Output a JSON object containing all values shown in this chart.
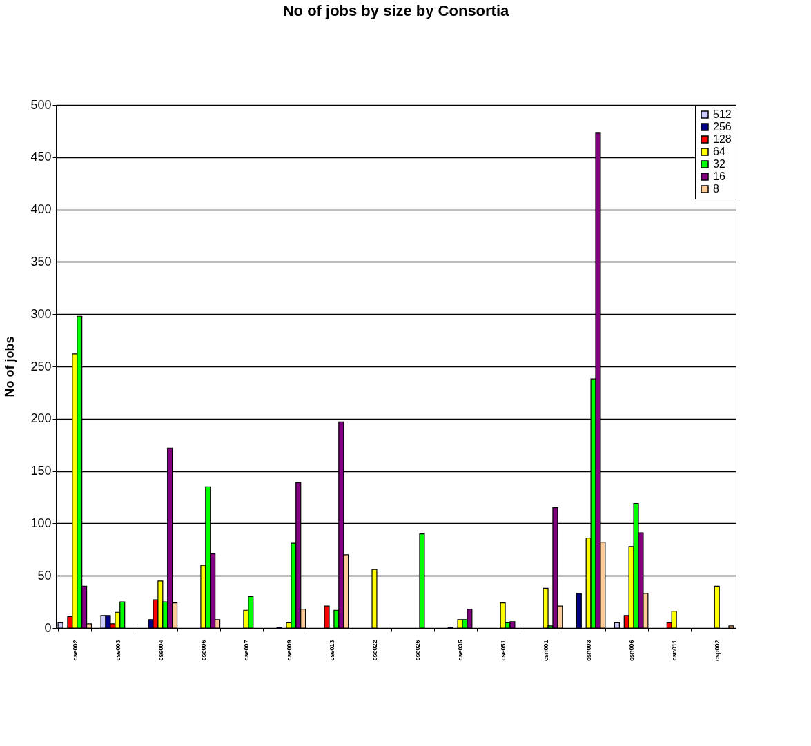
{
  "chart_data": {
    "type": "bar",
    "title": "No of jobs by size by Consortia",
    "ylabel": "No of jobs",
    "categories": [
      "cse002",
      "cse003",
      "cse004",
      "cse006",
      "cse007",
      "cse009",
      "cse013",
      "cse022",
      "cse026",
      "cse035",
      "cse051",
      "csn001",
      "csn003",
      "csn006",
      "csn011",
      "csp002"
    ],
    "series": [
      {
        "name": "512",
        "color": "#ccccff",
        "values": [
          5,
          12,
          null,
          null,
          null,
          null,
          null,
          null,
          null,
          null,
          null,
          null,
          null,
          5,
          null,
          null
        ]
      },
      {
        "name": "256",
        "color": "#000080",
        "values": [
          null,
          12,
          8,
          null,
          null,
          1,
          null,
          null,
          null,
          1,
          null,
          null,
          33,
          null,
          null,
          null
        ]
      },
      {
        "name": "128",
        "color": "#ff0000",
        "values": [
          11,
          4,
          27,
          null,
          null,
          null,
          21,
          null,
          null,
          null,
          null,
          null,
          null,
          12,
          5,
          null
        ]
      },
      {
        "name": "64",
        "color": "#ffff00",
        "values": [
          262,
          15,
          45,
          60,
          17,
          5,
          null,
          56,
          null,
          8,
          24,
          38,
          86,
          78,
          16,
          40
        ]
      },
      {
        "name": "32",
        "color": "#00ff00",
        "values": [
          298,
          25,
          25,
          135,
          30,
          81,
          17,
          null,
          90,
          8,
          5,
          2,
          238,
          119,
          null,
          null
        ]
      },
      {
        "name": "16",
        "color": "#800080",
        "values": [
          40,
          null,
          172,
          71,
          null,
          139,
          197,
          null,
          null,
          18,
          6,
          115,
          473,
          91,
          null,
          null
        ]
      },
      {
        "name": "8",
        "color": "#ffcc99",
        "values": [
          4,
          null,
          24,
          8,
          null,
          18,
          70,
          null,
          null,
          null,
          null,
          21,
          82,
          33,
          null,
          2
        ]
      }
    ],
    "ylim": [
      0,
      500
    ],
    "yticks": [
      0,
      50,
      100,
      150,
      200,
      250,
      300,
      350,
      400,
      450,
      500
    ],
    "grid": "y",
    "legend": "top right"
  }
}
